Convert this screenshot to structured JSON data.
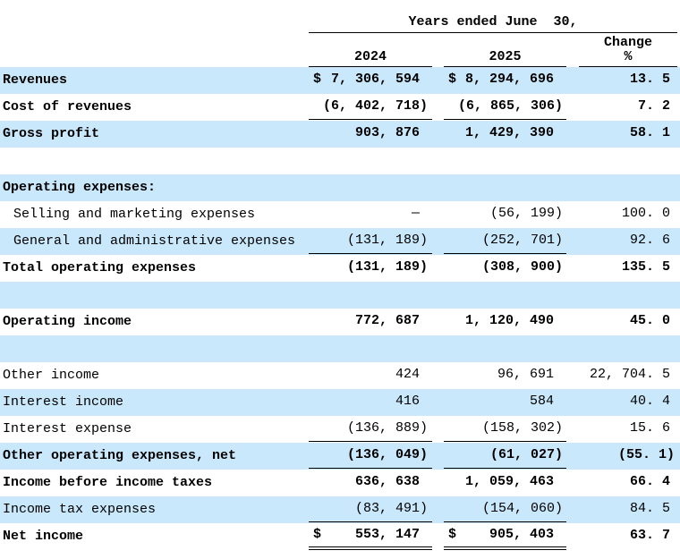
{
  "colors": {
    "row_highlight": "#c9e8fb",
    "text": "#000000",
    "background": "#ffffff"
  },
  "table": {
    "title": "Years ended June  30,",
    "columns": {
      "y2024": "2024",
      "y2025": "2025",
      "change_line1": "Change",
      "change_line2": "%"
    },
    "rows": [
      {
        "name": "revenues",
        "label": "Revenues",
        "bold": true,
        "shaded": true,
        "underline": "none",
        "dollar_2024": "$",
        "v2024": "7, 306, 594",
        "dollar_2025": "$",
        "v2025": "8, 294, 696",
        "change": "13. 5"
      },
      {
        "name": "cost-of-revenues",
        "label": "Cost of revenues",
        "bold": true,
        "shaded": false,
        "underline": "single",
        "v2024": "(6, 402, 718)",
        "v2025": "(6, 865, 306)",
        "change": "7. 2"
      },
      {
        "name": "gross-profit",
        "label": "Gross profit",
        "bold": true,
        "shaded": true,
        "underline": "none",
        "v2024": "903, 876",
        "v2025": "1, 429, 390",
        "change": "58. 1"
      },
      {
        "name": "spacer-1",
        "label": "",
        "spacer": true,
        "shaded": false
      },
      {
        "name": "operating-expenses-header",
        "label": "Operating expenses:",
        "bold": true,
        "shaded": true,
        "underline": "none"
      },
      {
        "name": "selling-and-marketing-expenses",
        "label": "Selling and marketing expenses",
        "bold": false,
        "indent": true,
        "shaded": false,
        "underline": "none",
        "v2024": "—",
        "v2025": "(56, 199)",
        "change": "100. 0"
      },
      {
        "name": "general-and-administrative-expenses",
        "label": "General and administrative expenses",
        "bold": false,
        "indent": true,
        "shaded": true,
        "underline": "single",
        "v2024": "(131, 189)",
        "v2025": "(252, 701)",
        "change": "92. 6"
      },
      {
        "name": "total-operating-expenses",
        "label": "Total operating expenses",
        "bold": true,
        "shaded": false,
        "underline": "none",
        "v2024": "(131, 189)",
        "v2025": "(308, 900)",
        "change": "135. 5"
      },
      {
        "name": "spacer-2",
        "label": "",
        "spacer": true,
        "shaded": true
      },
      {
        "name": "operating-income",
        "label": "Operating income",
        "bold": true,
        "shaded": false,
        "underline": "none",
        "v2024": "772, 687",
        "v2025": "1, 120, 490",
        "change": "45. 0"
      },
      {
        "name": "spacer-3",
        "label": "",
        "spacer": true,
        "shaded": true
      },
      {
        "name": "other-income",
        "label": "Other income",
        "bold": false,
        "shaded": false,
        "underline": "none",
        "v2024": "424",
        "v2025": "96, 691",
        "change": "22, 704. 5"
      },
      {
        "name": "interest-income",
        "label": "Interest income",
        "bold": false,
        "shaded": true,
        "underline": "none",
        "v2024": "416",
        "v2025": "584",
        "change": "40. 4"
      },
      {
        "name": "interest-expense",
        "label": "Interest expense",
        "bold": false,
        "shaded": false,
        "underline": "single",
        "v2024": "(136, 889)",
        "v2025": "(158, 302)",
        "change": "15. 6"
      },
      {
        "name": "other-operating-expenses-net",
        "label": "Other operating expenses, net",
        "bold": true,
        "shaded": true,
        "underline": "single",
        "v2024": "(136, 049)",
        "v2025": "(61, 027)",
        "change": "(55. 1)"
      },
      {
        "name": "income-before-income-taxes",
        "label": "Income before income taxes",
        "bold": true,
        "shaded": false,
        "underline": "none",
        "v2024": "636, 638",
        "v2025": "1, 059, 463",
        "change": "66. 4"
      },
      {
        "name": "income-tax-expenses",
        "label": "Income tax expenses",
        "bold": false,
        "shaded": true,
        "underline": "single",
        "v2024": "(83, 491)",
        "v2025": "(154, 060)",
        "change": "84. 5"
      },
      {
        "name": "net-income",
        "label": "Net income",
        "bold": true,
        "shaded": false,
        "underline": "double",
        "dollar_2024": "$",
        "v2024": "553, 147",
        "dollar_2025": "$",
        "v2025": "905, 403",
        "change": "63. 7"
      }
    ]
  }
}
